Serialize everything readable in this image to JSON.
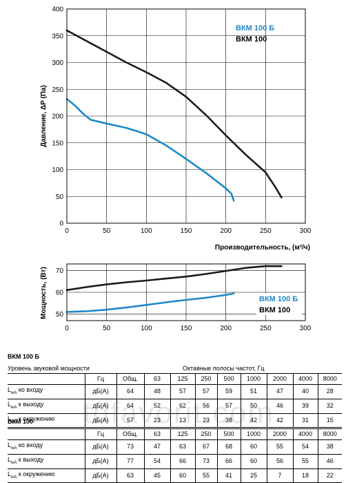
{
  "chart_data": [
    {
      "type": "line",
      "xlabel": "Производительность, (м³/ч)",
      "ylabel": "Давление, ΔP (Па)",
      "xlim": [
        0,
        300
      ],
      "ylim": [
        0,
        400
      ],
      "xticks": [
        0,
        50,
        100,
        150,
        200,
        250,
        300
      ],
      "yticks": [
        0,
        50,
        100,
        150,
        200,
        250,
        300,
        350,
        400
      ],
      "grid": true,
      "legend_position": "top-right",
      "series": [
        {
          "name": "ВКМ 100 Б",
          "color": "#1e88c7",
          "x": [
            0,
            10,
            20,
            30,
            50,
            75,
            100,
            125,
            150,
            175,
            200,
            207,
            210
          ],
          "y": [
            232,
            220,
            205,
            193,
            186,
            178,
            166,
            145,
            120,
            94,
            65,
            55,
            42
          ]
        },
        {
          "name": "ВКМ 100",
          "color": "#1a1a1a",
          "x": [
            0,
            25,
            50,
            75,
            100,
            125,
            150,
            175,
            200,
            225,
            250,
            262,
            270
          ],
          "y": [
            360,
            340,
            320,
            300,
            282,
            262,
            236,
            202,
            164,
            128,
            95,
            68,
            48
          ]
        }
      ]
    },
    {
      "type": "line",
      "xlabel": "",
      "ylabel": "Мощность, (Вт)",
      "xlim": [
        0,
        300
      ],
      "ylim": [
        47,
        73
      ],
      "xticks": [
        0,
        50,
        100,
        150,
        200,
        250,
        300
      ],
      "yticks": [
        50,
        60,
        70
      ],
      "grid": true,
      "legend_position": "right",
      "series": [
        {
          "name": "ВКМ 100 Б",
          "color": "#1e88c7",
          "x": [
            0,
            25,
            50,
            75,
            100,
            125,
            150,
            175,
            200,
            210
          ],
          "y": [
            51,
            51.3,
            52,
            53,
            54.2,
            55.4,
            56.5,
            57.5,
            58.8,
            59.5
          ]
        },
        {
          "name": "ВКМ 100",
          "color": "#1a1a1a",
          "x": [
            0,
            25,
            50,
            75,
            100,
            125,
            150,
            175,
            200,
            225,
            250,
            270
          ],
          "y": [
            61,
            62.4,
            63.6,
            64.6,
            65.4,
            66.3,
            67.2,
            68.4,
            69.8,
            71.2,
            72,
            72
          ]
        }
      ]
    },
    {
      "type": "table",
      "title": "ВКМ 100 Б",
      "header_left": "Уровень звуковой мощности",
      "header_right": "Октавные полосы частот, Гц",
      "columns": [
        "Гц",
        "Общ.",
        "63",
        "125",
        "250",
        "500",
        "1000",
        "2000",
        "4000",
        "8000"
      ],
      "rows": [
        {
          "label_main": "L",
          "label_sub": "wA",
          "label_rest": " ко входу",
          "unit": "дБ(А)",
          "values": [
            "64",
            "48",
            "57",
            "57",
            "59",
            "51",
            "47",
            "40",
            "28"
          ]
        },
        {
          "label_main": "L",
          "label_sub": "wA",
          "label_rest": " к выходу",
          "unit": "дБ(А)",
          "values": [
            "64",
            "52",
            "62",
            "56",
            "57",
            "50",
            "46",
            "39",
            "32"
          ]
        },
        {
          "label_main": "L",
          "label_sub": "wA",
          "label_rest": " к окружению",
          "unit": "дБ(А)",
          "values": [
            "57",
            "23",
            "13",
            "23",
            "38",
            "42",
            "42",
            "31",
            "15"
          ]
        }
      ]
    },
    {
      "type": "table",
      "title": "ВКМ 100",
      "columns": [
        "Гц",
        "Общ.",
        "63",
        "125",
        "250",
        "500",
        "1000",
        "2000",
        "4000",
        "8000"
      ],
      "rows": [
        {
          "label_main": "L",
          "label_sub": "wA",
          "label_rest": " ко входу",
          "unit": "дБ(А)",
          "values": [
            "73",
            "47",
            "63",
            "67",
            "68",
            "60",
            "55",
            "54",
            "38"
          ]
        },
        {
          "label_main": "L",
          "label_sub": "wA",
          "label_rest": " к выходу",
          "unit": "дБ(А)",
          "values": [
            "77",
            "54",
            "66",
            "73",
            "66",
            "60",
            "56",
            "55",
            "46"
          ]
        },
        {
          "label_main": "L",
          "label_sub": "wA",
          "label_rest": " к окружению",
          "unit": "дБ(А)",
          "values": [
            "63",
            "45",
            "60",
            "55",
            "41",
            "25",
            "7",
            "18",
            "22"
          ]
        }
      ]
    }
  ],
  "watermark": "tdfavorit.com"
}
